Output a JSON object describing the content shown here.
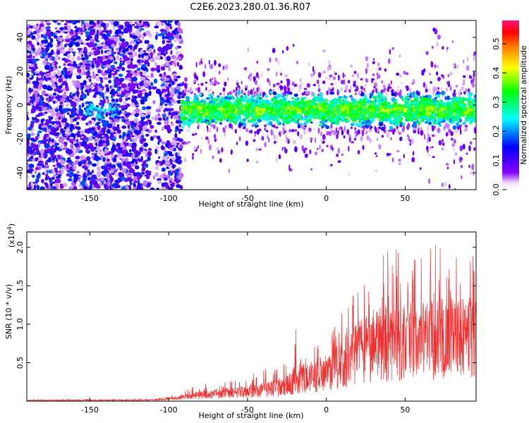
{
  "title": "C2E6.2023.280.01.36.R07",
  "chart_data": [
    {
      "type": "heatmap",
      "xlabel": "Height of straight line (km)",
      "ylabel": "Frequency (Hz)",
      "xlim": [
        -190,
        95
      ],
      "ylim": [
        -50,
        50
      ],
      "xticks": [
        -150,
        -100,
        -50,
        0,
        50
      ],
      "yticks": [
        -40,
        -20,
        0,
        20,
        40
      ],
      "colorbar": {
        "label": "Normalized spectral amplitude",
        "range": [
          0.0,
          0.58
        ],
        "ticks": [
          0.0,
          0.1,
          0.2,
          0.3,
          0.4,
          0.5
        ],
        "colormap": [
          "#ffffff",
          "#8b00ff",
          "#0000ff",
          "#00ffff",
          "#00ff00",
          "#ffff00",
          "#ff8000",
          "#ff0000",
          "#ff1080"
        ]
      },
      "features": {
        "broadband_noise_x_range": [
          -190,
          -92
        ],
        "main_band_x_range": [
          -92,
          95
        ],
        "main_band_center_freq": -3,
        "main_band_halfwidth": 9
      }
    },
    {
      "type": "line",
      "xlabel": "Height of straight line (km)",
      "ylabel": "SNR (10 * v/v)",
      "yexponent_label": "(x10",
      "yexponent": "4",
      "yexponent_close": ")",
      "xlim": [
        -190,
        95
      ],
      "ylim": [
        0,
        2.2
      ],
      "xticks": [
        -150,
        -100,
        -50,
        0,
        50
      ],
      "yticks": [
        0.5,
        1.0,
        1.5,
        2.0
      ],
      "color": "#ee3030",
      "envelope": {
        "x": [
          -190,
          -110,
          -100,
          -92,
          -80,
          -60,
          -40,
          -25,
          -20,
          -10,
          0,
          10,
          20,
          30,
          40,
          50,
          60,
          70,
          80,
          95
        ],
        "upper": [
          0.02,
          0.03,
          0.06,
          0.12,
          0.22,
          0.26,
          0.4,
          0.55,
          0.95,
          0.7,
          0.75,
          1.15,
          1.5,
          1.5,
          2.15,
          1.75,
          1.9,
          2.05,
          2.1,
          1.85
        ],
        "typical": [
          0.01,
          0.015,
          0.03,
          0.05,
          0.09,
          0.12,
          0.16,
          0.22,
          0.3,
          0.35,
          0.42,
          0.55,
          0.7,
          0.8,
          0.85,
          0.85,
          0.88,
          0.9,
          0.9,
          0.9
        ]
      }
    }
  ]
}
